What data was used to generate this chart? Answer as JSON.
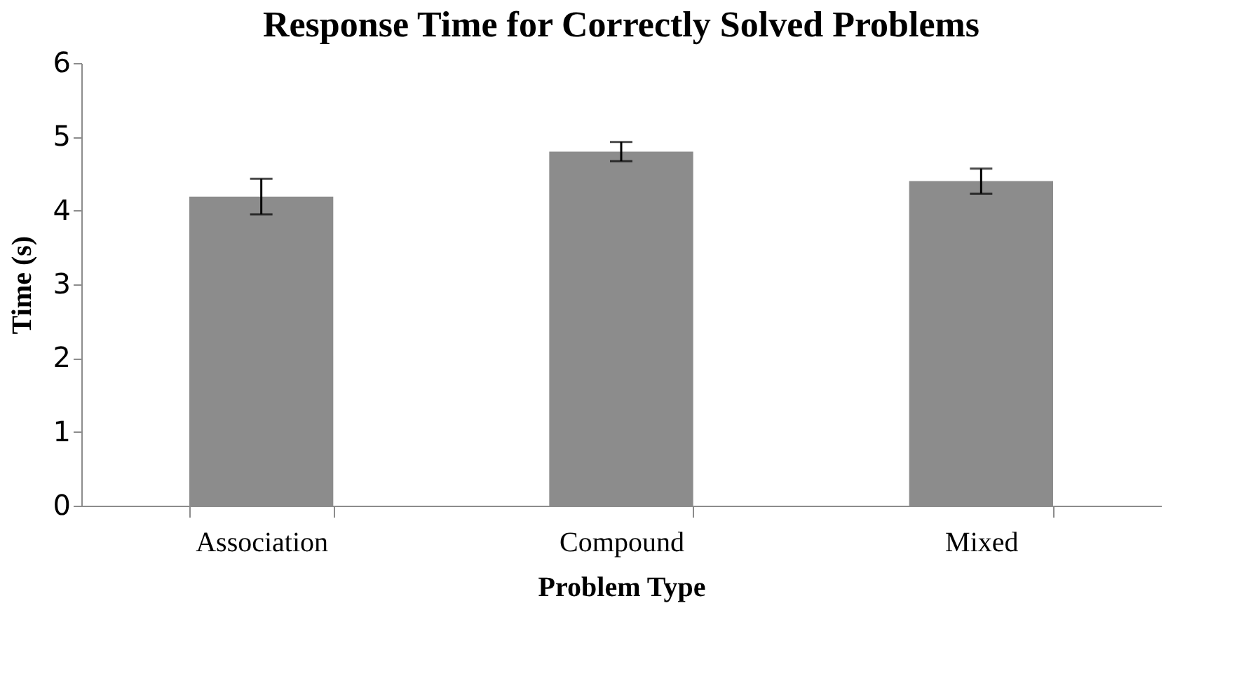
{
  "chart_data": {
    "type": "bar",
    "title": "Response Time for Correctly Solved Problems",
    "xlabel": "Problem Type",
    "ylabel": "Time (s)",
    "categories": [
      "Association",
      "Compound",
      "Mixed"
    ],
    "values": [
      4.19,
      4.8,
      4.4
    ],
    "errors": [
      0.24,
      0.13,
      0.17
    ],
    "color": "#8c8c8c",
    "ylim": [
      0,
      6
    ],
    "yticks": [
      0,
      1,
      2,
      3,
      4,
      5,
      6
    ],
    "grid": false
  }
}
